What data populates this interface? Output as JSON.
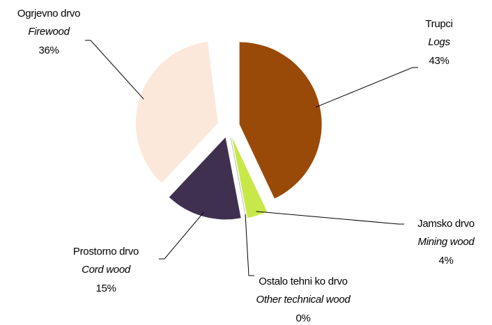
{
  "chart_data": {
    "type": "pie",
    "categories": [
      "Trupci",
      "Jamsko drvo",
      "Ostalo tehni  ko drvo",
      "Prostorno drvo",
      "Ogrjevno drvo"
    ],
    "english": [
      "Logs",
      "Mining wood",
      "Other technical  wood",
      "Cord wood",
      "Firewood"
    ],
    "values": [
      43,
      4,
      0,
      15,
      36
    ],
    "value_labels": [
      "43%",
      "4%",
      "0%",
      "15%",
      "36%"
    ],
    "colors": [
      "#9a4a08",
      "#c8e84a",
      "#f4f4f4",
      "#3f3050",
      "#fce8da"
    ]
  }
}
